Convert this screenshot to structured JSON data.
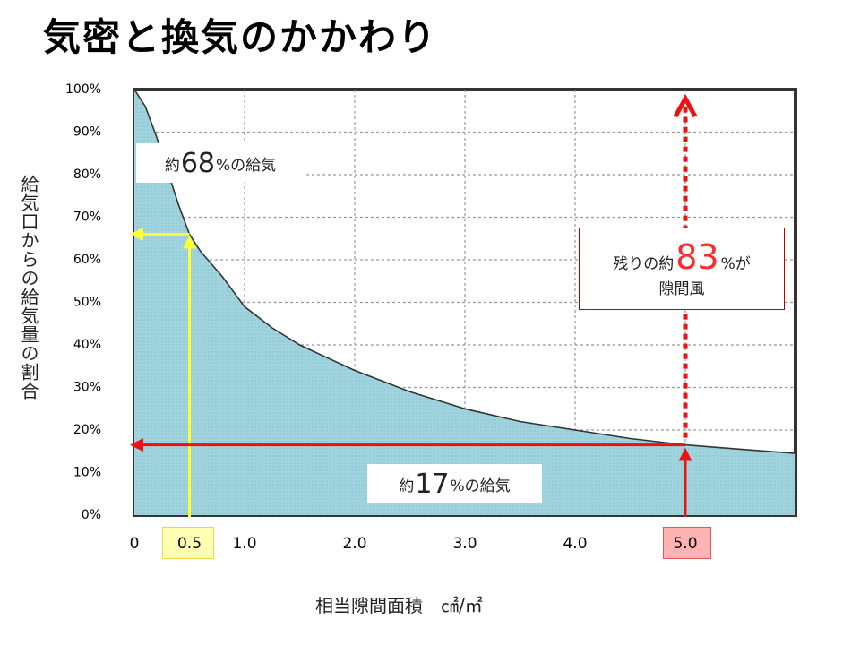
{
  "page": {
    "title": "気密と換気のかかわり",
    "ylabel": "給気口からの給気量の割合",
    "xlabel": "相当隙間面積　㎠/㎡"
  },
  "callouts": {
    "c68": {
      "prefix": "約",
      "num": "68",
      "suffix": "%の給気"
    },
    "c17": {
      "prefix": "約",
      "num": "17",
      "suffix": "%の給気"
    },
    "c83": {
      "prefix": "残りの約",
      "num": "83",
      "suffix": "%が",
      "line2": "隙間風"
    }
  },
  "colors": {
    "fill": "#9fd3dd",
    "curve": "#333333",
    "yellow_guide": "#ffff33",
    "red_guide": "#ee1111",
    "highlight_05": "#ffffb3",
    "highlight_50": "#ffb3b3"
  },
  "chart_data": {
    "type": "area",
    "x": [
      0,
      0.1,
      0.2,
      0.3,
      0.4,
      0.5,
      0.6,
      0.8,
      1.0,
      1.25,
      1.5,
      1.75,
      2.0,
      2.5,
      3.0,
      3.5,
      4.0,
      4.5,
      5.0,
      5.5,
      6.0
    ],
    "y": [
      100,
      96,
      89,
      81,
      73,
      66,
      62,
      56,
      49,
      44,
      40,
      37,
      34,
      29,
      25,
      22,
      20,
      18,
      16.5,
      15.5,
      14.5
    ],
    "xlim": [
      0,
      6
    ],
    "ylim": [
      0,
      100
    ],
    "x_ticks": [
      {
        "value": 0,
        "label": "0"
      },
      {
        "value": 0.5,
        "label": "0.5"
      },
      {
        "value": 1.0,
        "label": "1.0"
      },
      {
        "value": 2.0,
        "label": "2.0"
      },
      {
        "value": 3.0,
        "label": "3.0"
      },
      {
        "value": 4.0,
        "label": "4.0"
      },
      {
        "value": 5.0,
        "label": "5.0"
      }
    ],
    "y_ticks": [
      {
        "value": 0,
        "label": "0%"
      },
      {
        "value": 10,
        "label": "10%"
      },
      {
        "value": 20,
        "label": "20%"
      },
      {
        "value": 30,
        "label": "30%"
      },
      {
        "value": 40,
        "label": "40%"
      },
      {
        "value": 50,
        "label": "50%"
      },
      {
        "value": 60,
        "label": "60%"
      },
      {
        "value": 70,
        "label": "70%"
      },
      {
        "value": 80,
        "label": "80%"
      },
      {
        "value": 90,
        "label": "90%"
      },
      {
        "value": 100,
        "label": "100%"
      }
    ],
    "grid": true,
    "annotations": [
      {
        "x": 0.5,
        "y": 66,
        "text": "約68%の給気"
      },
      {
        "x": 5.0,
        "y": 16.5,
        "text": "約17%の給気"
      },
      {
        "x": 5.0,
        "y": 100,
        "text": "残りの約83%が隙間風"
      }
    ]
  }
}
